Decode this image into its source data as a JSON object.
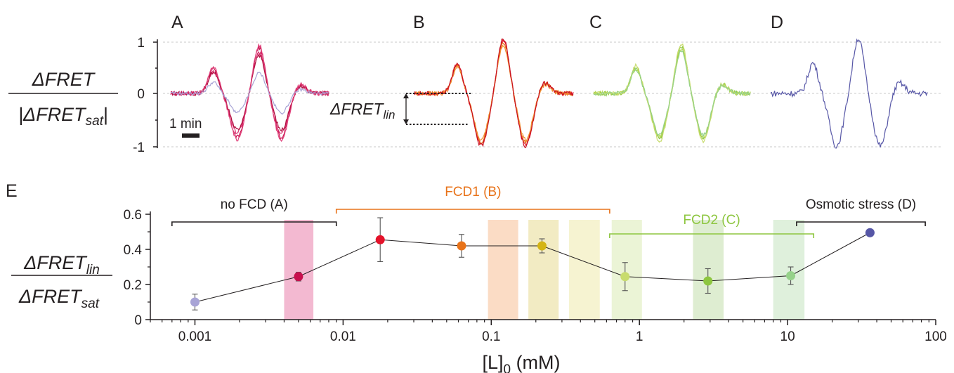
{
  "panels": {
    "A": "A",
    "B": "B",
    "C": "C",
    "D": "D",
    "E": "E"
  },
  "top_axis": {
    "ylabel_num": "ΔFRET",
    "ylabel_den_pre": "|ΔFRET",
    "ylabel_den_sub": "sat",
    "ylabel_den_post": "|",
    "ticks": [
      "1",
      "0",
      "-1"
    ],
    "tick_values": [
      1,
      0,
      -1
    ],
    "scalebar_label": "1 min",
    "lin_label": "ΔFRET",
    "lin_sub": "lin"
  },
  "bottom_axis": {
    "ylabel_num": "ΔFRET",
    "ylabel_num_sub": "lin",
    "ylabel_den": "ΔFRET",
    "ylabel_den_sub": "sat",
    "xlabel_pre": "[L]",
    "xlabel_sub": "0",
    "xlabel_post": " (mM)"
  },
  "groups": [
    {
      "label": "no FCD (A)",
      "color": "#231f20",
      "range": [
        0.0007,
        0.009
      ]
    },
    {
      "label": "FCD1 (B)",
      "color": "#e8731a",
      "range": [
        0.009,
        0.63
      ]
    },
    {
      "label": "FCD2 (C)",
      "color": "#8dc63f",
      "range": [
        0.63,
        15
      ]
    },
    {
      "label": "Osmotic stress (D)",
      "color": "#231f20",
      "range": [
        11.5,
        85
      ]
    }
  ],
  "bands": [
    {
      "range": [
        0.004,
        0.0063
      ],
      "color": "#e4649a"
    },
    {
      "range": [
        0.095,
        0.152
      ],
      "color": "#f6b27e"
    },
    {
      "range": [
        0.178,
        0.285
      ],
      "color": "#e2d27a"
    },
    {
      "range": [
        0.335,
        0.54
      ],
      "color": "#ece59a"
    },
    {
      "range": [
        0.65,
        1.04
      ],
      "color": "#d2e6a4"
    },
    {
      "range": [
        2.3,
        3.7
      ],
      "color": "#b6d89a"
    },
    {
      "range": [
        8.0,
        13.0
      ],
      "color": "#b8deb2"
    }
  ],
  "chart_data": {
    "type": "scatter",
    "xlabel": "[L]0 (mM)",
    "ylabel": "ΔFRETlin / ΔFRETsat",
    "xscale": "log",
    "xlim": [
      0.0005,
      100
    ],
    "ylim": [
      0,
      0.6
    ],
    "x_ticks": [
      "0.001",
      "0.01",
      "0.1",
      "1",
      "10",
      "100"
    ],
    "x_tick_values": [
      0.001,
      0.01,
      0.1,
      1,
      10,
      100
    ],
    "y_ticks": [
      "0",
      "0.2",
      "0.4",
      "0.6"
    ],
    "y_tick_values": [
      0,
      0.2,
      0.4,
      0.6
    ],
    "points": [
      {
        "x": 0.001,
        "y": 0.1,
        "err": 0.045,
        "color": "#a8a4d6"
      },
      {
        "x": 0.005,
        "y": 0.245,
        "err": 0.025,
        "color": "#c8104e"
      },
      {
        "x": 0.0178,
        "y": 0.455,
        "err": 0.125,
        "color": "#e4122a"
      },
      {
        "x": 0.063,
        "y": 0.42,
        "err": 0.065,
        "color": "#e8731a"
      },
      {
        "x": 0.22,
        "y": 0.42,
        "err": 0.04,
        "color": "#d4b414"
      },
      {
        "x": 0.8,
        "y": 0.245,
        "err": 0.08,
        "color": "#c8dc6e"
      },
      {
        "x": 2.9,
        "y": 0.22,
        "err": 0.07,
        "color": "#8dc63f"
      },
      {
        "x": 10.5,
        "y": 0.25,
        "err": 0.05,
        "color": "#96d28a"
      },
      {
        "x": 36,
        "y": 0.495,
        "err": 0,
        "color": "#5656a6"
      }
    ]
  }
}
